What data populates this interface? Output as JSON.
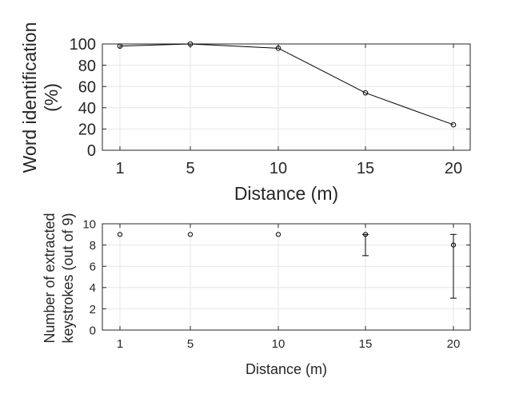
{
  "chart_data": [
    {
      "type": "line",
      "x": [
        "1",
        "5",
        "10",
        "15",
        "20"
      ],
      "values": [
        98,
        100,
        96,
        54,
        24
      ],
      "xlabel": "Distance (m)",
      "ylabel_lines": [
        "Word identification",
        "(%)"
      ],
      "ylim": [
        0,
        100
      ],
      "yticks": [
        "0",
        "20",
        "40",
        "60",
        "80",
        "100"
      ],
      "grid": true,
      "marker": "circle"
    },
    {
      "type": "scatter",
      "x": [
        "1",
        "5",
        "10",
        "15",
        "20"
      ],
      "values": [
        9,
        9,
        9,
        9,
        8
      ],
      "error_low": [
        9,
        9,
        9,
        7,
        3
      ],
      "error_high": [
        9,
        9,
        9,
        9,
        9
      ],
      "xlabel": "Distance (m)",
      "ylabel_lines": [
        "Number of extracted",
        "keystrokes (out of 9)"
      ],
      "ylim": [
        0,
        10
      ],
      "yticks": [
        "0",
        "2",
        "4",
        "6",
        "8",
        "10"
      ],
      "grid": true,
      "marker": "circle"
    }
  ]
}
